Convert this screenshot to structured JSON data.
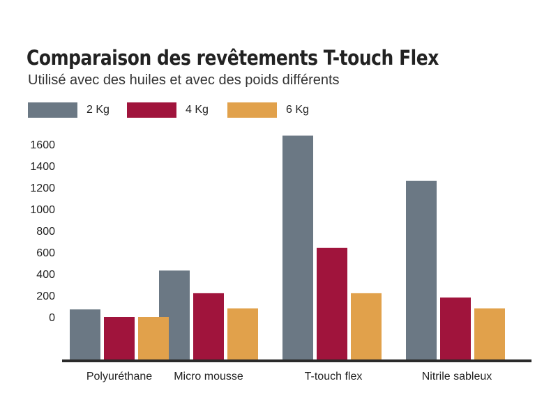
{
  "chart_data": {
    "type": "bar",
    "title": "Comparaison des revêtements T-touch Flex",
    "subtitle": "Utilisé avec des huiles et avec des poids différents",
    "xlabel": "",
    "ylabel": "",
    "categories": [
      "Polyuréthane",
      "Micro mousse",
      "T-touch flex",
      "Nitrile sableux"
    ],
    "series": [
      {
        "name": "2 Kg",
        "color": "#6b7884",
        "values": [
          70,
          430,
          1680,
          1260
        ]
      },
      {
        "name": "4 Kg",
        "color": "#a0143c",
        "values": [
          0,
          220,
          640,
          180
        ]
      },
      {
        "name": "6 Kg",
        "color": "#e1a14b",
        "values": [
          0,
          80,
          220,
          80
        ]
      }
    ],
    "yticks": [
      "1600",
      "1400",
      "1200",
      "1000",
      "800",
      "600",
      "400",
      "200",
      "0"
    ],
    "ylim": [
      -400,
      1600
    ],
    "grid": false,
    "legend": "top-left"
  }
}
